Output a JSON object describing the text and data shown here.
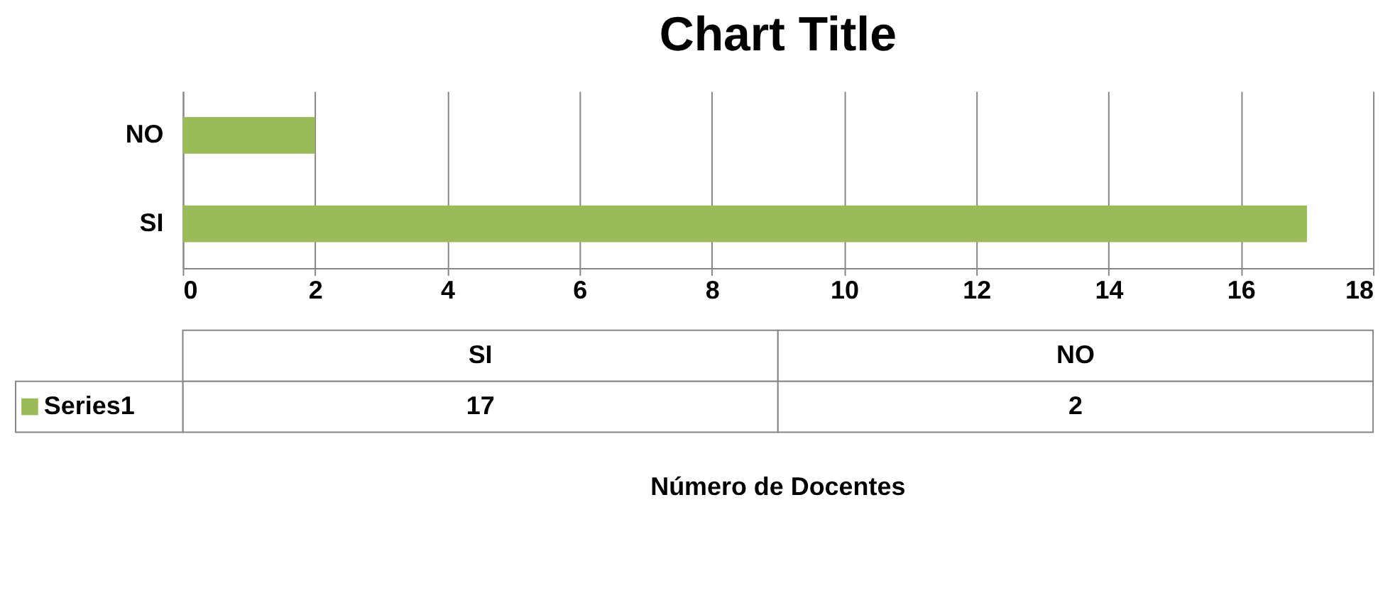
{
  "chart_data": {
    "type": "bar",
    "orientation": "horizontal",
    "title": "Chart Title",
    "categories": [
      "NO",
      "SI"
    ],
    "series": [
      {
        "name": "Series1",
        "color": "#9bbb59",
        "values": [
          2,
          17
        ]
      }
    ],
    "xlim": [
      0,
      18
    ],
    "xticks": [
      0,
      2,
      4,
      6,
      8,
      10,
      12,
      14,
      16,
      18
    ],
    "grid": "x",
    "annotations": [
      "17",
      "2",
      "Número de Docentes"
    ]
  }
}
